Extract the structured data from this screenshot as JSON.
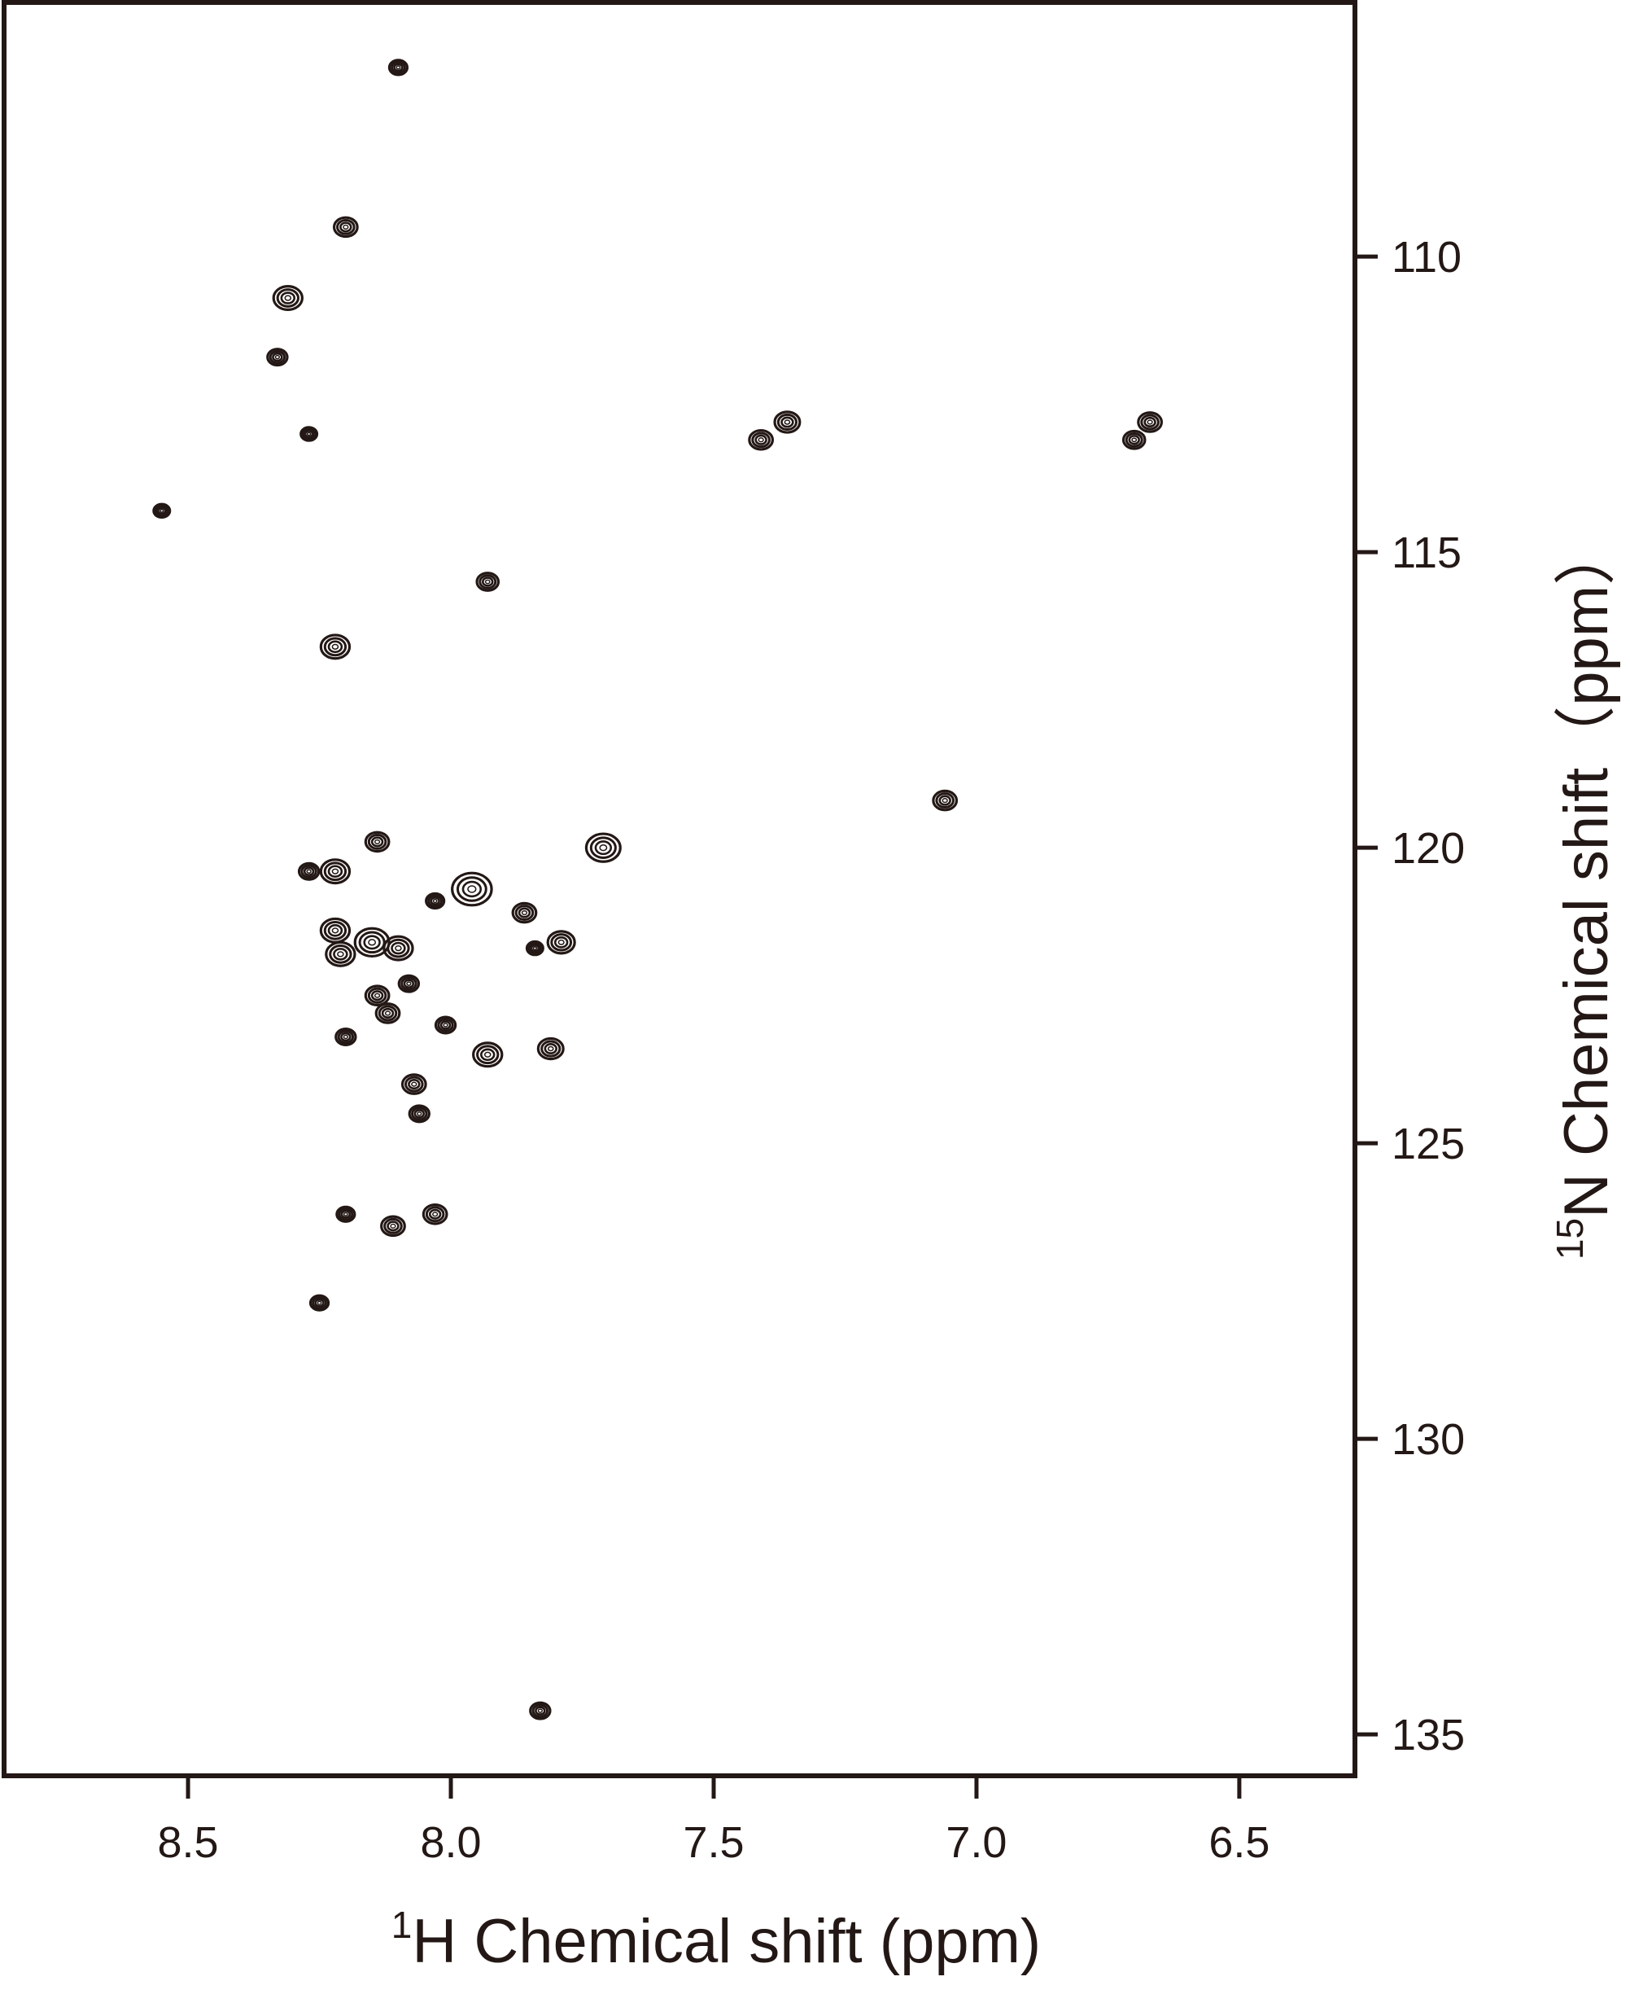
{
  "chart_data": {
    "type": "scatter",
    "plot_kind": "2D 1H-15N HSQC contour spectrum",
    "xlabel_sup": "1",
    "xlabel_text": "H Chemical shift (ppm)",
    "ylabel_sup": "15",
    "ylabel_text": "N Chemical shift（ppm）",
    "x_axis": {
      "reversed": true,
      "range": [
        8.85,
        6.28
      ],
      "ticks": [
        8.5,
        8.0,
        7.5,
        7.0,
        6.5
      ],
      "tick_labels": [
        "8.5",
        "8.0",
        "7.5",
        "7.0",
        "6.5"
      ]
    },
    "y_axis": {
      "position": "right",
      "reversed": true,
      "range": [
        105.7,
        135.7
      ],
      "ticks": [
        110,
        115,
        120,
        125,
        130,
        135
      ],
      "tick_labels": [
        "110",
        "115",
        "120",
        "125",
        "130",
        "135"
      ]
    },
    "grid": false,
    "legend": "none",
    "colors": {
      "contour": "#231815",
      "axes": "#231815",
      "background": "#ffffff"
    },
    "points": [
      {
        "x": 8.1,
        "y": 106.8,
        "w": 1
      },
      {
        "x": 8.2,
        "y": 109.5,
        "w": 1.3
      },
      {
        "x": 8.31,
        "y": 110.7,
        "w": 1.6
      },
      {
        "x": 8.33,
        "y": 111.7,
        "w": 1.1
      },
      {
        "x": 8.27,
        "y": 113.0,
        "w": 0.9
      },
      {
        "x": 8.55,
        "y": 114.3,
        "w": 0.9
      },
      {
        "x": 7.41,
        "y": 113.1,
        "w": 1.3
      },
      {
        "x": 7.36,
        "y": 112.8,
        "w": 1.4
      },
      {
        "x": 6.7,
        "y": 113.1,
        "w": 1.2
      },
      {
        "x": 6.67,
        "y": 112.8,
        "w": 1.3
      },
      {
        "x": 7.93,
        "y": 115.5,
        "w": 1.2
      },
      {
        "x": 8.22,
        "y": 116.6,
        "w": 1.6
      },
      {
        "x": 7.06,
        "y": 119.2,
        "w": 1.3
      },
      {
        "x": 7.71,
        "y": 120.0,
        "w": 1.9
      },
      {
        "x": 8.14,
        "y": 119.9,
        "w": 1.3
      },
      {
        "x": 8.27,
        "y": 120.4,
        "w": 1.1
      },
      {
        "x": 8.22,
        "y": 120.4,
        "w": 1.6
      },
      {
        "x": 7.96,
        "y": 120.7,
        "w": 2.2
      },
      {
        "x": 8.03,
        "y": 120.9,
        "w": 1.0
      },
      {
        "x": 7.86,
        "y": 121.1,
        "w": 1.3
      },
      {
        "x": 8.22,
        "y": 121.4,
        "w": 1.6
      },
      {
        "x": 8.21,
        "y": 121.8,
        "w": 1.6
      },
      {
        "x": 8.15,
        "y": 121.6,
        "w": 1.9
      },
      {
        "x": 8.1,
        "y": 121.7,
        "w": 1.6
      },
      {
        "x": 7.79,
        "y": 121.6,
        "w": 1.5
      },
      {
        "x": 7.84,
        "y": 121.7,
        "w": 0.9
      },
      {
        "x": 8.08,
        "y": 122.3,
        "w": 1.1
      },
      {
        "x": 8.14,
        "y": 122.5,
        "w": 1.3
      },
      {
        "x": 8.12,
        "y": 122.8,
        "w": 1.3
      },
      {
        "x": 8.01,
        "y": 123.0,
        "w": 1.1
      },
      {
        "x": 8.2,
        "y": 123.2,
        "w": 1.1
      },
      {
        "x": 7.93,
        "y": 123.5,
        "w": 1.6
      },
      {
        "x": 7.81,
        "y": 123.4,
        "w": 1.4
      },
      {
        "x": 8.07,
        "y": 124.0,
        "w": 1.3
      },
      {
        "x": 8.06,
        "y": 124.5,
        "w": 1.1
      },
      {
        "x": 8.2,
        "y": 126.2,
        "w": 1.0
      },
      {
        "x": 8.11,
        "y": 126.4,
        "w": 1.3
      },
      {
        "x": 8.03,
        "y": 126.2,
        "w": 1.3
      },
      {
        "x": 8.25,
        "y": 127.7,
        "w": 1.0
      },
      {
        "x": 7.83,
        "y": 134.6,
        "w": 1.1
      }
    ]
  }
}
